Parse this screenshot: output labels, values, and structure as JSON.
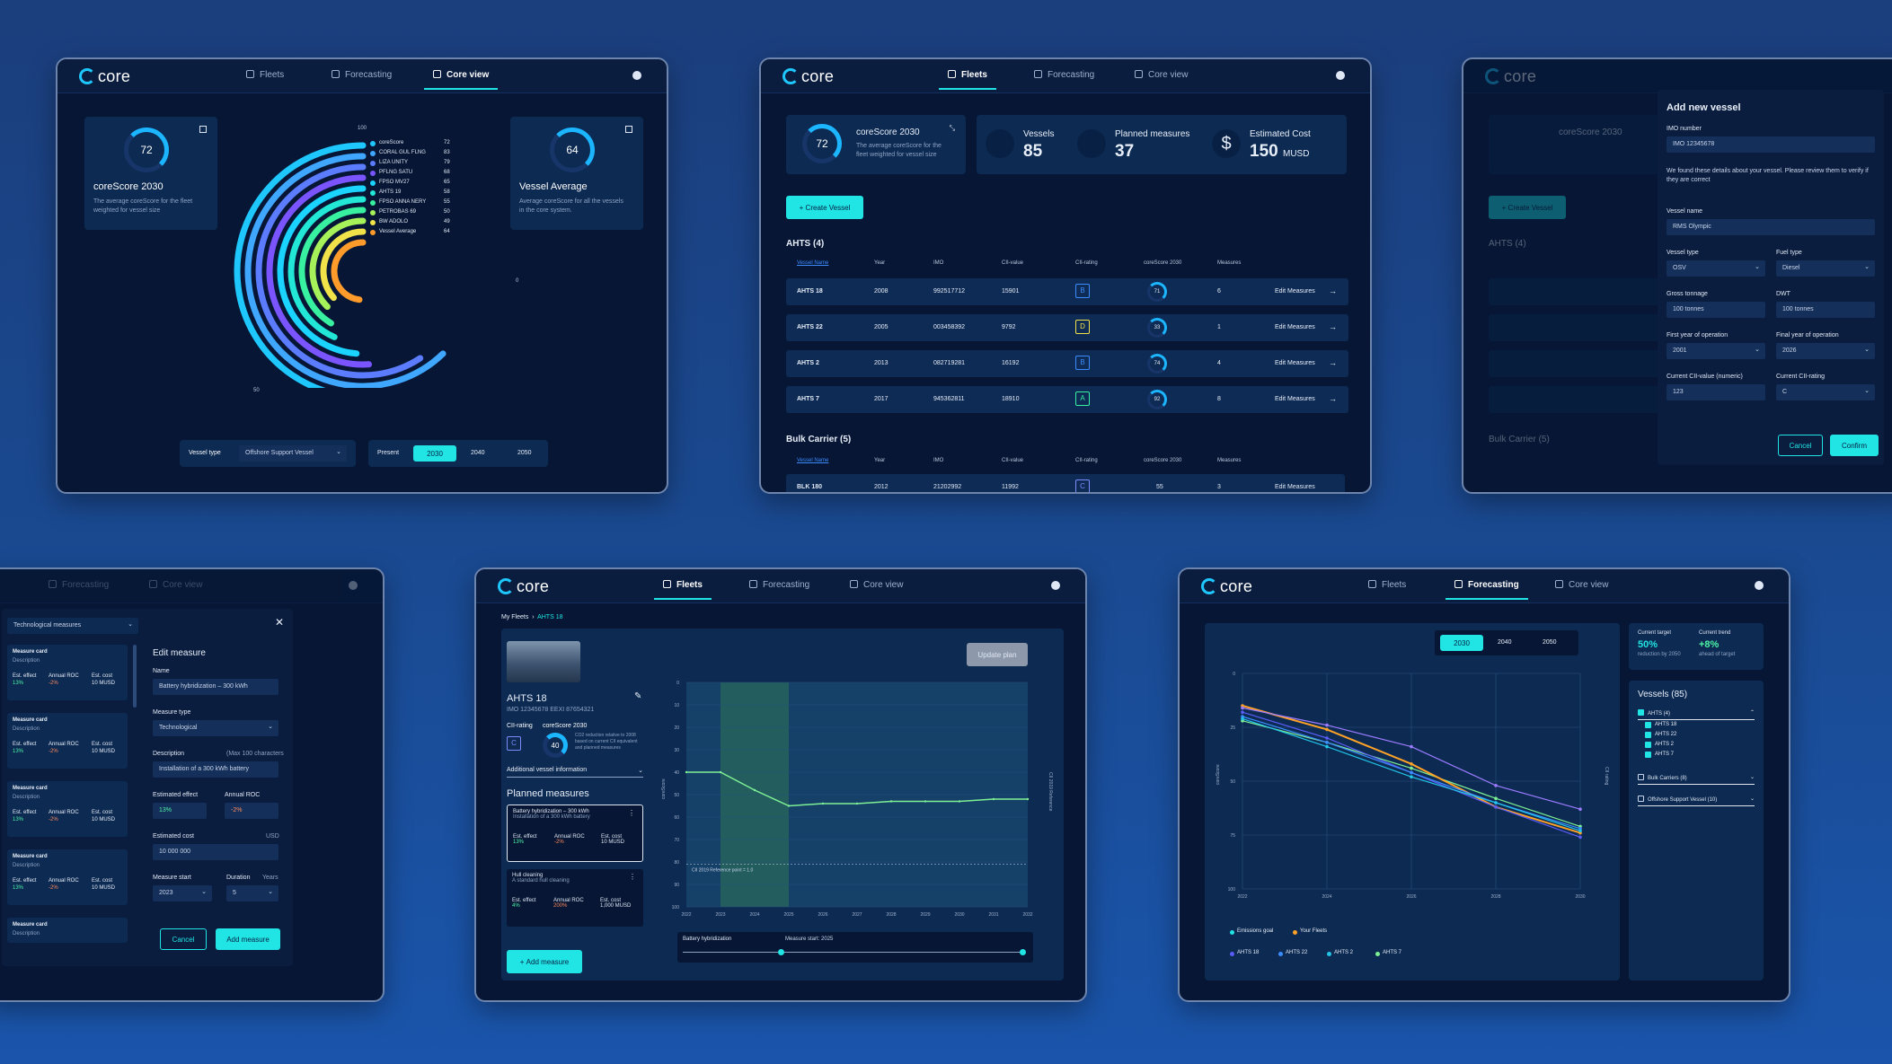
{
  "brand": "core",
  "nav": {
    "fleets": "Fleets",
    "forecasting": "Forecasting",
    "core_view": "Core view"
  },
  "screen1": {
    "score": {
      "value": "72",
      "title": "coreScore 2030",
      "desc": "The average coreScore for the fleet weighted for vessel size"
    },
    "avg": {
      "value": "64",
      "title": "Vessel Average",
      "desc": "Average coreScore for all the vessels in the core system."
    },
    "legend": [
      {
        "name": "coreScore",
        "value": "72",
        "color": "#1ec8ff"
      },
      {
        "name": "CORAL GUL FLNG",
        "value": "83",
        "color": "#3fa7ff"
      },
      {
        "name": "LIZA UNITY",
        "value": "79",
        "color": "#5b7cff"
      },
      {
        "name": "PFLNG SATU",
        "value": "68",
        "color": "#7a55ff"
      },
      {
        "name": "FPSO MV27",
        "value": "65",
        "color": "#1ad3ff"
      },
      {
        "name": "AHTS 19",
        "value": "58",
        "color": "#22e7d6"
      },
      {
        "name": "FPSO ANNA NERY",
        "value": "55",
        "color": "#37f0a0"
      },
      {
        "name": "PETROBAS 69",
        "value": "50",
        "color": "#a6f05a"
      },
      {
        "name": "BW ADOLO",
        "value": "49",
        "color": "#f1e24a"
      },
      {
        "name": "Vessel Average",
        "value": "64",
        "color": "#ff9b2a"
      }
    ],
    "axis": {
      "top": "100",
      "right": "0",
      "bottom": "50"
    },
    "vessel_type_label": "Vessel type",
    "vessel_type_value": "Offshore Support Vessel",
    "years": [
      "Present",
      "2030",
      "2040",
      "2050"
    ],
    "year_active": "2030"
  },
  "screen2": {
    "score": {
      "value": "72",
      "title": "coreScore 2030",
      "desc": "The average coreScore for the fleet weighted for vessel size"
    },
    "vessels": {
      "label": "Vessels",
      "value": "85"
    },
    "planned": {
      "label": "Planned measures",
      "value": "37"
    },
    "cost": {
      "label": "Estimated Cost",
      "value": "150",
      "unit": "MUSD"
    },
    "create": "Create Vessel",
    "group1": "AHTS (4)",
    "group2": "Bulk Carrier (5)",
    "cols": [
      "Vessel Name",
      "Year",
      "IMO",
      "CII-value",
      "CII-rating",
      "coreScore 2030",
      "Measures"
    ],
    "edit": "Edit Measures",
    "rows": [
      {
        "name": "AHTS 18",
        "year": "2008",
        "imo": "992517712",
        "cii": "15901",
        "rating": "B",
        "score": "71",
        "measures": "6",
        "color": "#3b8cff"
      },
      {
        "name": "AHTS 22",
        "year": "2005",
        "imo": "003458392",
        "cii": "9792",
        "rating": "D",
        "score": "33",
        "measures": "1",
        "color": "#f1e24a"
      },
      {
        "name": "AHTS 2",
        "year": "2013",
        "imo": "082719281",
        "cii": "16192",
        "rating": "B",
        "score": "74",
        "measures": "4",
        "color": "#3b8cff"
      },
      {
        "name": "AHTS 7",
        "year": "2017",
        "imo": "945362811",
        "cii": "18910",
        "rating": "A",
        "score": "92",
        "measures": "8",
        "color": "#37f0a0"
      }
    ],
    "bulk_row": {
      "name": "BLK 180",
      "year": "2012",
      "imo": "21202992",
      "cii": "11992",
      "rating": "C",
      "score": "55",
      "measures": "3"
    }
  },
  "screen3": {
    "title": "Add new vessel",
    "imo_label": "IMO number",
    "imo_value": "IMO 12345678",
    "found": "We found these details about your vessel. Please review them to verify if they are correct",
    "name_label": "Vessel name",
    "name_value": "RMS Olympic",
    "type_label": "Vessel type",
    "type_value": "OSV",
    "fuel_label": "Fuel type",
    "fuel_value": "Diesel",
    "gross_label": "Gross tonnage",
    "gross_value": "100 tonnes",
    "dwt_label": "DWT",
    "dwt_value": "100 tonnes",
    "first_label": "First year of operation",
    "first_value": "2001",
    "final_label": "Final year of operation",
    "final_value": "2026",
    "ciiv_label": "Current CII-value (numeric)",
    "ciiv_value": "123",
    "ciir_label": "Current CII-rating",
    "ciir_value": "C",
    "cancel": "Cancel",
    "confirm": "Confirm",
    "bg_score": "coreScore 2030",
    "bg_create": "Create Vessel",
    "bg_group1": "AHTS (4)",
    "bg_group2": "Bulk Carrier (5)"
  },
  "screen4": {
    "filter": "Technological measures",
    "card_title": "Measure card",
    "card_desc": "Description",
    "eff_label": "Est. effect",
    "eff_value": "13%",
    "roc_label": "Annual ROC",
    "roc_value": "-2%",
    "cost_label": "Est. cost",
    "cost_value": "10 MUSD",
    "edit_title": "Edit measure",
    "name_label": "Name",
    "name_value": "Battery hybridization – 300 kWh",
    "type_label": "Measure type",
    "type_value": "Technological",
    "desc_label": "Description",
    "desc_hint": "(Max 100 characters",
    "desc_value": "Installation of a 300 kWh battery",
    "effect_label": "Estimated effect",
    "effect_value": "13%",
    "aroc_label": "Annual ROC",
    "aroc_value": "-2%",
    "ecost_label": "Estimated cost",
    "ecost_unit": "USD",
    "ecost_value": "10 000 000",
    "start_label": "Measure start",
    "start_value": "2023",
    "dur_label": "Duration",
    "dur_unit": "Years",
    "dur_value": "5",
    "cancel": "Cancel",
    "add": "Add measure"
  },
  "screen5": {
    "crumb1": "My Fleets",
    "crumb2": "AHTS 18",
    "vessel": "AHTS 18",
    "ids": "IMO 12345678    EEXI 87654321",
    "cii_label": "CII-rating",
    "cii_value": "C",
    "score_label": "coreScore 2030",
    "score_value": "40",
    "score_desc": "CO2 reduction relative to 2008 based on current CII equivalent and planned measures",
    "additional": "Additional vessel information",
    "planned": "Planned measures",
    "m1": {
      "title": "Battery hybridization – 300 kWh",
      "desc": "Installation of a 300 kWh battery",
      "eff": "13%",
      "roc": "-2%",
      "cost": "10 MUSD"
    },
    "m2": {
      "title": "Hull cleaning",
      "desc": "A standard hull cleaning",
      "eff": "4%",
      "roc": "200%",
      "cost": "1,000 MUSD"
    },
    "eff_label": "Est. effect",
    "roc_label": "Annual ROC",
    "cost_label": "Est. cost",
    "add": "Add measure",
    "update": "Update plan",
    "left_axis_label": "coreScore",
    "right_axis_label": "CII 2019 Reference",
    "ref_line": "CII 2019 Reference point = 1.0",
    "slider_label": "Battery hybridization",
    "slider_start": "Measure start: 2025"
  },
  "screen6": {
    "years": [
      "2030",
      "2040",
      "2050"
    ],
    "year_active": "2030",
    "target_label": "Current target",
    "target_value": "50%",
    "target_sub": "reduction by 2050",
    "trend_label": "Current trend",
    "trend_value": "+8%",
    "trend_sub": "ahead of target",
    "vessels_title": "Vessels (85)",
    "group1": "AHTS (4)",
    "items": [
      "AHTS 18",
      "AHTS 22",
      "AHTS 2",
      "AHTS 7"
    ],
    "group2": "Bulk Carriers (8)",
    "group3": "Offshore Support Vessel (10)",
    "left_axis_label": "coreScore",
    "right_axis_label": "CII rating",
    "legend1": [
      {
        "name": "Emissions goal",
        "color": "#21e4e4"
      },
      {
        "name": "Your Fleets",
        "color": "#ffa227"
      }
    ],
    "legend2": [
      {
        "name": "AHTS 18",
        "color": "#5a5cf5"
      },
      {
        "name": "AHTS 22",
        "color": "#3b8cff"
      },
      {
        "name": "AHTS 2",
        "color": "#22c4e8"
      },
      {
        "name": "AHTS 7",
        "color": "#7ef094"
      }
    ]
  },
  "chart_data": [
    {
      "type": "bar",
      "title": "",
      "categories": [
        "coreScore",
        "CORAL GUL FLNG",
        "LIZA UNITY",
        "PFLNG SATU",
        "FPSO MV27",
        "AHTS 19",
        "FPSO ANNA NERY",
        "PETROBAS 69",
        "BW ADOLO",
        "Vessel Average"
      ],
      "values": [
        72,
        83,
        79,
        68,
        65,
        58,
        55,
        50,
        49,
        64
      ],
      "ylim": [
        0,
        100
      ]
    },
    {
      "type": "line",
      "x": [
        2022,
        2023,
        2024,
        2025,
        2026,
        2027,
        2028,
        2029,
        2030,
        2031,
        2032
      ],
      "series": [
        {
          "values": [
            40,
            40,
            48,
            55,
            54,
            54,
            53,
            53,
            53,
            52,
            52
          ]
        }
      ],
      "ylim": [
        0,
        100
      ]
    },
    {
      "type": "line",
      "x": [
        2022,
        2024,
        2026,
        2028,
        2030
      ],
      "series": [
        {
          "name": "Emissions goal",
          "values": [
            22,
            32,
            44,
            58,
            71
          ]
        },
        {
          "name": "Your Fleets",
          "values": [
            15,
            26,
            42,
            62,
            74
          ]
        },
        {
          "name": "AHTS 18",
          "values": [
            18,
            30,
            46,
            62,
            76
          ]
        },
        {
          "name": "AHTS 22",
          "values": [
            20,
            32,
            46,
            60,
            72
          ]
        },
        {
          "name": "AHTS 2",
          "values": [
            21,
            34,
            48,
            60,
            73
          ]
        },
        {
          "name": "AHTS 7",
          "values": [
            16,
            24,
            34,
            52,
            63
          ]
        }
      ],
      "ylim": [
        0,
        100
      ]
    }
  ]
}
